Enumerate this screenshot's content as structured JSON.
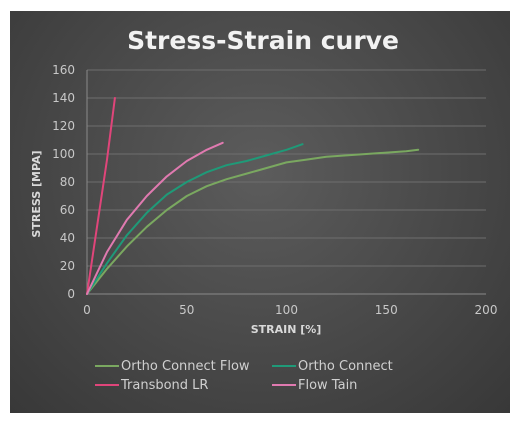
{
  "chart_data": {
    "type": "line",
    "title": "Stress-Strain curve",
    "xlabel": "STRAIN [%]",
    "ylabel": "STRESS [MPA]",
    "xlim": [
      0,
      200
    ],
    "ylim": [
      0,
      160
    ],
    "xticks": [
      0,
      50,
      100,
      150,
      200
    ],
    "yticks": [
      0,
      20,
      40,
      60,
      80,
      100,
      120,
      140,
      160
    ],
    "grid": "horizontal",
    "legend_position": "bottom",
    "series": [
      {
        "name": "Ortho Connect Flow",
        "color": "#7aa860",
        "points": [
          [
            0,
            0
          ],
          [
            10,
            18
          ],
          [
            20,
            34
          ],
          [
            30,
            48
          ],
          [
            40,
            60
          ],
          [
            50,
            70
          ],
          [
            60,
            77
          ],
          [
            70,
            82
          ],
          [
            80,
            86
          ],
          [
            90,
            90
          ],
          [
            100,
            94
          ],
          [
            110,
            96
          ],
          [
            120,
            98
          ],
          [
            130,
            99
          ],
          [
            140,
            100
          ],
          [
            150,
            101
          ],
          [
            160,
            102
          ],
          [
            166,
            103
          ]
        ]
      },
      {
        "name": "Ortho Connect",
        "color": "#1f9a78",
        "points": [
          [
            0,
            0
          ],
          [
            10,
            22
          ],
          [
            20,
            42
          ],
          [
            30,
            58
          ],
          [
            40,
            71
          ],
          [
            50,
            80
          ],
          [
            60,
            87
          ],
          [
            70,
            92
          ],
          [
            80,
            95
          ],
          [
            90,
            99
          ],
          [
            100,
            103
          ],
          [
            108,
            107
          ]
        ]
      },
      {
        "name": "Transbond LR",
        "color": "#e0457a",
        "points": [
          [
            0,
            0
          ],
          [
            5,
            48
          ],
          [
            10,
            96
          ],
          [
            14,
            140
          ]
        ]
      },
      {
        "name": "Flow Tain",
        "color": "#e07ab0",
        "points": [
          [
            0,
            0
          ],
          [
            10,
            30
          ],
          [
            20,
            53
          ],
          [
            30,
            70
          ],
          [
            40,
            84
          ],
          [
            50,
            95
          ],
          [
            60,
            103
          ],
          [
            68,
            108
          ]
        ]
      }
    ]
  }
}
